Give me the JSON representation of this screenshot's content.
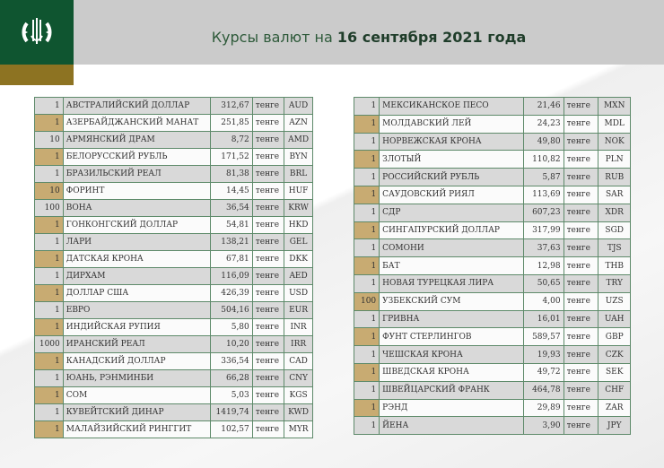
{
  "header": {
    "title_prefix": "Курсы валют на ",
    "title_date": "16 сентября 2021 года"
  },
  "colors": {
    "brand_green": "#0f5530",
    "gold": "#8d7322",
    "row_gray": "#d9d9d9",
    "unit_tan": "#c8ab72",
    "border": "#5e8a6a"
  },
  "left_table": [
    [
      "1",
      "АВСТРАЛИЙСКИЙ ДОЛЛАР",
      "312,67",
      "тенге",
      "AUD"
    ],
    [
      "1",
      "АЗЕРБАЙДЖАНСКИЙ МАНАТ",
      "251,85",
      "тенге",
      "AZN"
    ],
    [
      "10",
      "АРМЯНСКИЙ  ДРАМ",
      "8,72",
      "тенге",
      "AMD"
    ],
    [
      "1",
      "БЕЛОРУССКИЙ РУБЛЬ",
      "171,52",
      "тенге",
      "BYN"
    ],
    [
      "1",
      "БРАЗИЛЬСКИЙ РЕАЛ",
      "81,38",
      "тенге",
      "BRL"
    ],
    [
      "10",
      "ФОРИНТ",
      "14,45",
      "тенге",
      "HUF"
    ],
    [
      "100",
      "ВОНА",
      "36,54",
      "тенге",
      "KRW"
    ],
    [
      "1",
      "ГОНКОНГСКИЙ ДОЛЛАР",
      "54,81",
      "тенге",
      "HKD"
    ],
    [
      "1",
      "ЛАРИ",
      "138,21",
      "тенге",
      "GEL"
    ],
    [
      "1",
      "ДАТСКАЯ КРОНА",
      "67,81",
      "тенге",
      "DKK"
    ],
    [
      "1",
      "ДИРХАМ",
      "116,09",
      "тенге",
      "AED"
    ],
    [
      "1",
      "ДОЛЛАР США",
      "426,39",
      "тенге",
      "USD"
    ],
    [
      "1",
      "ЕВРО",
      "504,16",
      "тенге",
      "EUR"
    ],
    [
      "1",
      "ИНДИЙСКАЯ РУПИЯ",
      "5,80",
      "тенге",
      "INR"
    ],
    [
      "1000",
      "ИРАНСКИЙ РЕАЛ",
      "10,20",
      "тенге",
      "IRR"
    ],
    [
      "1",
      "КАНАДСКИЙ ДОЛЛАР",
      "336,54",
      "тенге",
      "CAD"
    ],
    [
      "1",
      "ЮАНЬ, РЭНМИНБИ",
      "66,28",
      "тенге",
      "CNY"
    ],
    [
      "1",
      "СОМ",
      "5,03",
      "тенге",
      "KGS"
    ],
    [
      "1",
      "КУВЕЙТСКИЙ ДИНАР",
      "1419,74",
      "тенге",
      "KWD"
    ],
    [
      "1",
      "МАЛАЙЗИЙСКИЙ РИНГГИТ",
      "102,57",
      "тенге",
      "MYR"
    ]
  ],
  "right_table": [
    [
      "1",
      "МЕКСИКАНСКОЕ ПЕСО",
      "21,46",
      "тенге",
      "MXN"
    ],
    [
      "1",
      "МОЛДАВСКИЙ ЛЕЙ",
      "24,23",
      "тенге",
      "MDL"
    ],
    [
      "1",
      "НОРВЕЖСКАЯ КРОНА",
      "49,80",
      "тенге",
      "NOK"
    ],
    [
      "1",
      "ЗЛОТЫЙ",
      "110,82",
      "тенге",
      "PLN"
    ],
    [
      "1",
      "РОССИЙСКИЙ РУБЛЬ",
      "5,87",
      "тенге",
      "RUB"
    ],
    [
      "1",
      "САУДОВСКИЙ РИЯЛ",
      "113,69",
      "тенге",
      "SAR"
    ],
    [
      "1",
      "СДР",
      "607,23",
      "тенге",
      "XDR"
    ],
    [
      "1",
      "СИНГАПУРСКИЙ ДОЛЛАР",
      "317,99",
      "тенге",
      "SGD"
    ],
    [
      "1",
      "СОМОНИ",
      "37,63",
      "тенге",
      "TJS"
    ],
    [
      "1",
      "БАТ",
      "12,98",
      "тенге",
      "THB"
    ],
    [
      "1",
      "НОВАЯ ТУРЕЦКАЯ ЛИРА",
      "50,65",
      "тенге",
      "TRY"
    ],
    [
      "100",
      "УЗБЕКСКИЙ СУМ",
      "4,00",
      "тенге",
      "UZS"
    ],
    [
      "1",
      "ГРИВНА",
      "16,01",
      "тенге",
      "UAH"
    ],
    [
      "1",
      "ФУНТ СТЕРЛИНГОВ",
      "589,57",
      "тенге",
      "GBP"
    ],
    [
      "1",
      "ЧЕШСКАЯ КРОНА",
      "19,93",
      "тенге",
      "CZK"
    ],
    [
      "1",
      "ШВЕДСКАЯ КРОНА",
      "49,72",
      "тенге",
      "SEK"
    ],
    [
      "1",
      "ШВЕЙЦАРСКИЙ ФРАНК",
      "464,78",
      "тенге",
      "CHF"
    ],
    [
      "1",
      "РЭНД",
      "29,89",
      "тенге",
      "ZAR"
    ],
    [
      "1",
      "ЙЕНА",
      "3,90",
      "тенге",
      "JPY"
    ]
  ]
}
